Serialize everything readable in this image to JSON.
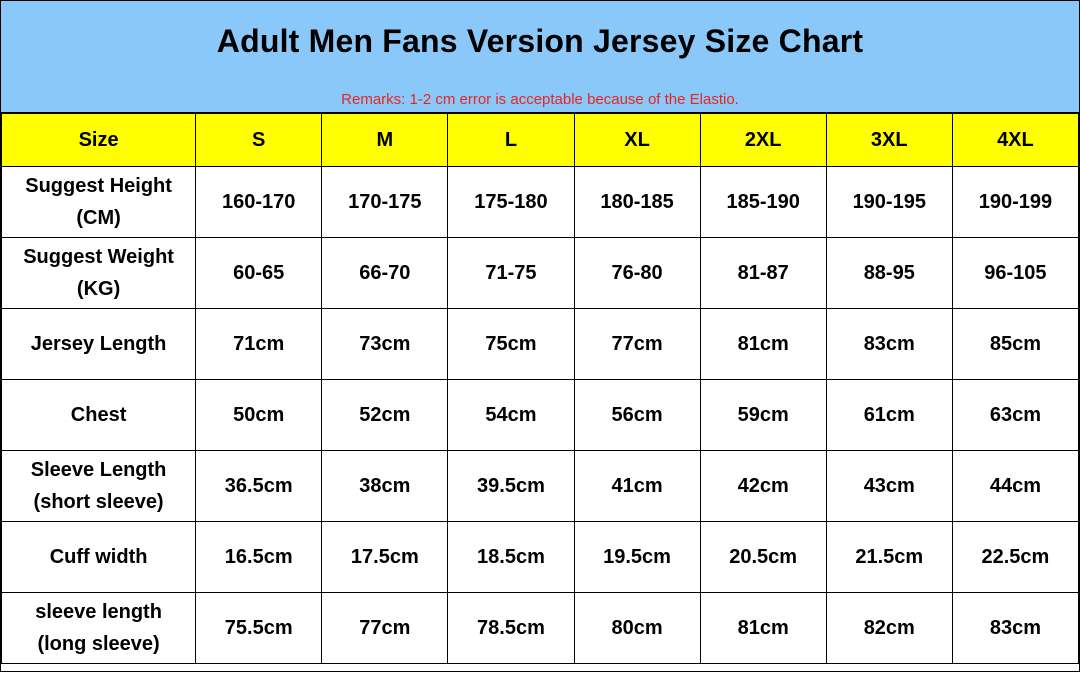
{
  "title": "Adult Men Fans Version Jersey Size Chart",
  "remark": "Remarks: 1-2 cm error is acceptable because of the Elastio.",
  "colors": {
    "header_bg": "#89c8f9",
    "size_row_bg": "#ffff00",
    "remark_text": "#e8261f"
  },
  "columns": [
    "Size",
    "S",
    "M",
    "L",
    "XL",
    "2XL",
    "3XL",
    "4XL"
  ],
  "rows": [
    {
      "label_lines": [
        "Suggest Height",
        "(CM)"
      ],
      "values": [
        "160-170",
        "170-175",
        "175-180",
        "180-185",
        "185-190",
        "190-195",
        "190-199"
      ]
    },
    {
      "label_lines": [
        "Suggest Weight",
        "(KG)"
      ],
      "values": [
        "60-65",
        "66-70",
        "71-75",
        "76-80",
        "81-87",
        "88-95",
        "96-105"
      ]
    },
    {
      "label_lines": [
        "Jersey Length"
      ],
      "values": [
        "71cm",
        "73cm",
        "75cm",
        "77cm",
        "81cm",
        "83cm",
        "85cm"
      ]
    },
    {
      "label_lines": [
        "Chest"
      ],
      "values": [
        "50cm",
        "52cm",
        "54cm",
        "56cm",
        "59cm",
        "61cm",
        "63cm"
      ]
    },
    {
      "label_lines": [
        "Sleeve Length",
        "(short sleeve)"
      ],
      "values": [
        "36.5cm",
        "38cm",
        "39.5cm",
        "41cm",
        "42cm",
        "43cm",
        "44cm"
      ]
    },
    {
      "label_lines": [
        "Cuff width"
      ],
      "values": [
        "16.5cm",
        "17.5cm",
        "18.5cm",
        "19.5cm",
        "20.5cm",
        "21.5cm",
        "22.5cm"
      ]
    },
    {
      "label_lines": [
        "sleeve length",
        "(long sleeve)"
      ],
      "values": [
        "75.5cm",
        "77cm",
        "78.5cm",
        "80cm",
        "81cm",
        "82cm",
        "83cm"
      ]
    }
  ]
}
